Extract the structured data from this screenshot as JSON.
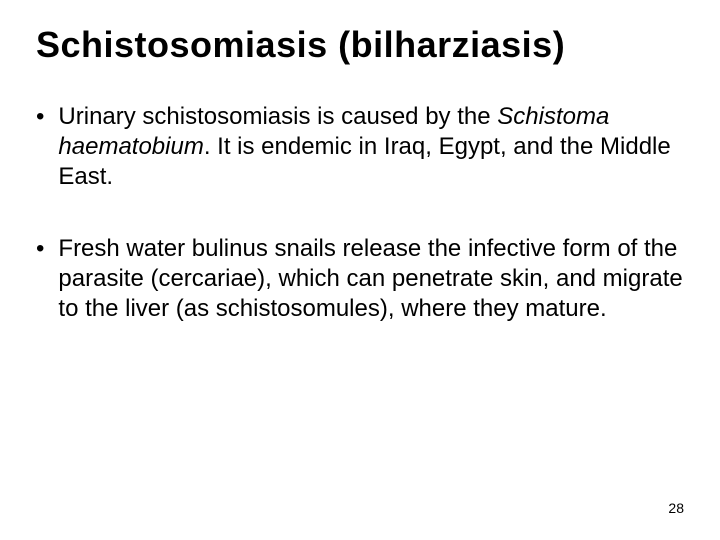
{
  "slide": {
    "title": "Schistosomiasis (bilharziasis)",
    "bullets": [
      {
        "pre": "Urinary schistosomiasis is caused by the ",
        "italic": "Schistoma haematobium",
        "post": ". It is endemic in Iraq, Egypt, and the Middle East."
      },
      {
        "pre": " Fresh water bulinus snails release the infective form of the parasite (cercariae), which can penetrate skin, and migrate to the liver (as schistosomules), where they mature.",
        "italic": "",
        "post": ""
      }
    ],
    "page_number": "28"
  },
  "style": {
    "background_color": "#ffffff",
    "text_color": "#000000",
    "title_fontsize": 36,
    "body_fontsize": 24,
    "page_number_fontsize": 14,
    "font_family": "Arial, Helvetica, sans-serif"
  }
}
